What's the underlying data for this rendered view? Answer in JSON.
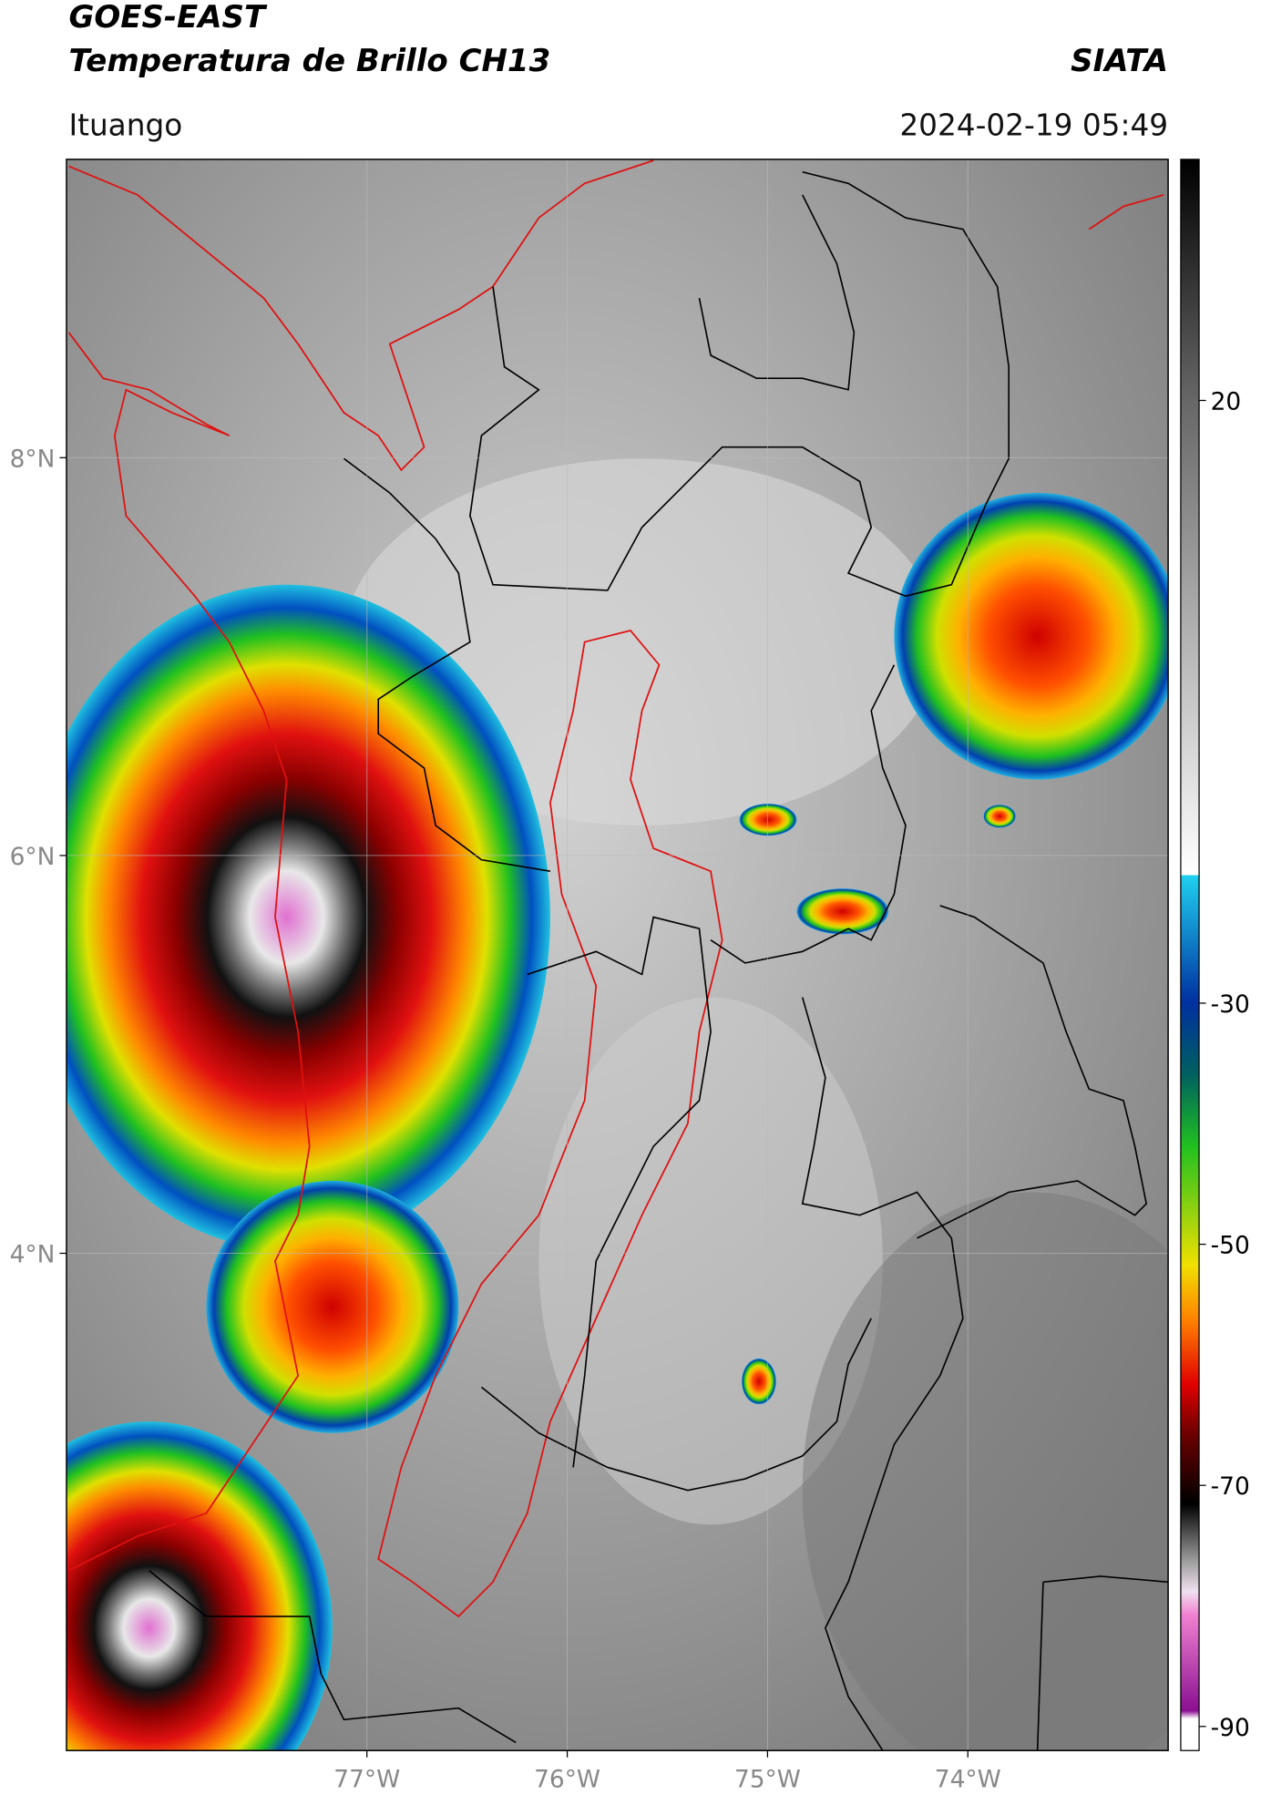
{
  "header": {
    "title": "GOES-EAST",
    "subtitle": "Temperatura de Brillo CH13",
    "agency": "SIATA",
    "location": "Ituango",
    "datetime": "2024-02-19 05:49"
  },
  "map": {
    "xlim": [
      -78.5,
      -73
    ],
    "ylim": [
      1.5,
      9.5
    ],
    "xticks": [
      {
        "value": -77,
        "label": "77°W"
      },
      {
        "value": -76,
        "label": "76°W"
      },
      {
        "value": -75,
        "label": "75°W"
      },
      {
        "value": -74,
        "label": "74°W"
      }
    ],
    "yticks": [
      {
        "value": 8,
        "label": "8°N"
      },
      {
        "value": 6,
        "label": "6°N"
      },
      {
        "value": 4,
        "label": "4°N"
      }
    ],
    "grid": true
  },
  "colorbar": {
    "ylim": [
      -92,
      40
    ],
    "yticks": [
      20,
      -30,
      -50,
      -70,
      -90
    ]
  }
}
